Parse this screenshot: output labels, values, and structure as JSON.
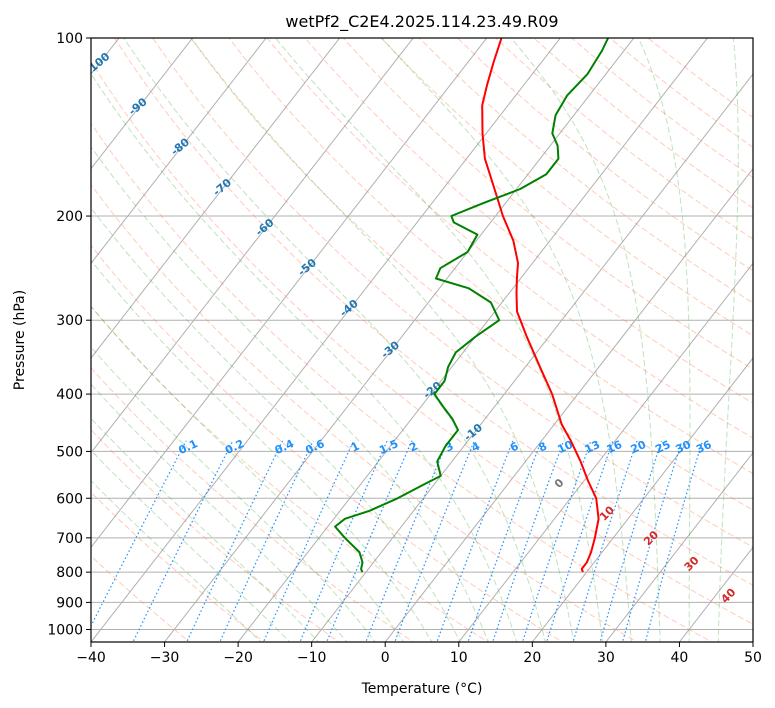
{
  "chart_data": {
    "type": "line",
    "subtype": "skew-t log-p diagram",
    "title": "wetPf2_C2E4.2025.114.23.49.R09",
    "xlabel": "Temperature (°C)",
    "ylabel": "Pressure (hPa)",
    "xlim": [
      -40,
      50
    ],
    "ylim": [
      1050,
      100
    ],
    "y_scale": "log",
    "grid": true,
    "x_ticks": [
      -40,
      -30,
      -20,
      -10,
      0,
      10,
      20,
      30,
      40,
      50
    ],
    "y_ticks": [
      100,
      200,
      300,
      400,
      500,
      600,
      700,
      800,
      900,
      1000
    ],
    "series": [
      {
        "color": "#ff0000",
        "points": [
          {
            "p": 800,
            "t": 19.5
          },
          {
            "p": 790,
            "t": 19.0
          },
          {
            "p": 770,
            "t": 19.0
          },
          {
            "p": 740,
            "t": 18.5
          },
          {
            "p": 700,
            "t": 17.5
          },
          {
            "p": 650,
            "t": 16.0
          },
          {
            "p": 600,
            "t": 13.5
          },
          {
            "p": 560,
            "t": 10.5
          },
          {
            "p": 520,
            "t": 7.5
          },
          {
            "p": 480,
            "t": 4.0
          },
          {
            "p": 450,
            "t": 1.0
          },
          {
            "p": 400,
            "t": -3.5
          },
          {
            "p": 360,
            "t": -8.0
          },
          {
            "p": 320,
            "t": -13.0
          },
          {
            "p": 290,
            "t": -17.0
          },
          {
            "p": 270,
            "t": -19.0
          },
          {
            "p": 255,
            "t": -20.5
          },
          {
            "p": 240,
            "t": -22.0
          },
          {
            "p": 220,
            "t": -25.0
          },
          {
            "p": 200,
            "t": -29.0
          },
          {
            "p": 180,
            "t": -33.0
          },
          {
            "p": 160,
            "t": -37.5
          },
          {
            "p": 145,
            "t": -40.5
          },
          {
            "p": 130,
            "t": -43.5
          },
          {
            "p": 120,
            "t": -45.0
          },
          {
            "p": 110,
            "t": -46.5
          },
          {
            "p": 100,
            "t": -48.0
          }
        ]
      },
      {
        "color": "#008000",
        "points": [
          {
            "p": 800,
            "t": -10.5
          },
          {
            "p": 790,
            "t": -11.0
          },
          {
            "p": 770,
            "t": -11.5
          },
          {
            "p": 740,
            "t": -13.0
          },
          {
            "p": 700,
            "t": -16.5
          },
          {
            "p": 670,
            "t": -19.0
          },
          {
            "p": 650,
            "t": -18.5
          },
          {
            "p": 630,
            "t": -16.0
          },
          {
            "p": 600,
            "t": -13.5
          },
          {
            "p": 570,
            "t": -11.5
          },
          {
            "p": 550,
            "t": -10.0
          },
          {
            "p": 520,
            "t": -12.0
          },
          {
            "p": 490,
            "t": -12.5
          },
          {
            "p": 460,
            "t": -12.5
          },
          {
            "p": 440,
            "t": -14.5
          },
          {
            "p": 420,
            "t": -17.0
          },
          {
            "p": 400,
            "t": -19.5
          },
          {
            "p": 380,
            "t": -19.5
          },
          {
            "p": 360,
            "t": -20.5
          },
          {
            "p": 340,
            "t": -21.0
          },
          {
            "p": 320,
            "t": -20.0
          },
          {
            "p": 300,
            "t": -18.5
          },
          {
            "p": 280,
            "t": -21.5
          },
          {
            "p": 265,
            "t": -26.0
          },
          {
            "p": 255,
            "t": -31.5
          },
          {
            "p": 245,
            "t": -32.0
          },
          {
            "p": 230,
            "t": -30.0
          },
          {
            "p": 215,
            "t": -30.5
          },
          {
            "p": 205,
            "t": -35.0
          },
          {
            "p": 200,
            "t": -36.0
          },
          {
            "p": 190,
            "t": -33.0
          },
          {
            "p": 180,
            "t": -29.5
          },
          {
            "p": 170,
            "t": -27.5
          },
          {
            "p": 160,
            "t": -27.5
          },
          {
            "p": 152,
            "t": -29.0
          },
          {
            "p": 145,
            "t": -31.0
          },
          {
            "p": 135,
            "t": -32.5
          },
          {
            "p": 125,
            "t": -33.0
          },
          {
            "p": 115,
            "t": -32.5
          },
          {
            "p": 105,
            "t": -33.0
          },
          {
            "p": 100,
            "t": -33.5
          }
        ]
      }
    ],
    "annotations": {
      "isotherm_labels": [
        "-100",
        "-90",
        "-80",
        "-70",
        "-60",
        "-50",
        "-40",
        "-30",
        "-20",
        "-10"
      ],
      "mixing_ratio_labels": [
        "0.1",
        "0.2",
        "0.4",
        "0.6",
        "1",
        "1.5",
        "2",
        "3",
        "4",
        "6",
        "8",
        "10",
        "13",
        "16",
        "20",
        "25",
        "30",
        "36"
      ],
      "moist_adiabat_labels": [
        "0",
        "10",
        "20",
        "30",
        "40"
      ]
    },
    "colors": {
      "temperature": "#ff0000",
      "dewpoint": "#008000",
      "isotherm_label": "#1f77b4",
      "mixing_ratio": "#1e90ff",
      "moist_adiabat_label": "#d62728",
      "zero_label": "#777777",
      "dry_adiabat": "#ff7f50",
      "moist_adiabat": "#2ca02c",
      "grid": "#b0b0b0"
    }
  }
}
